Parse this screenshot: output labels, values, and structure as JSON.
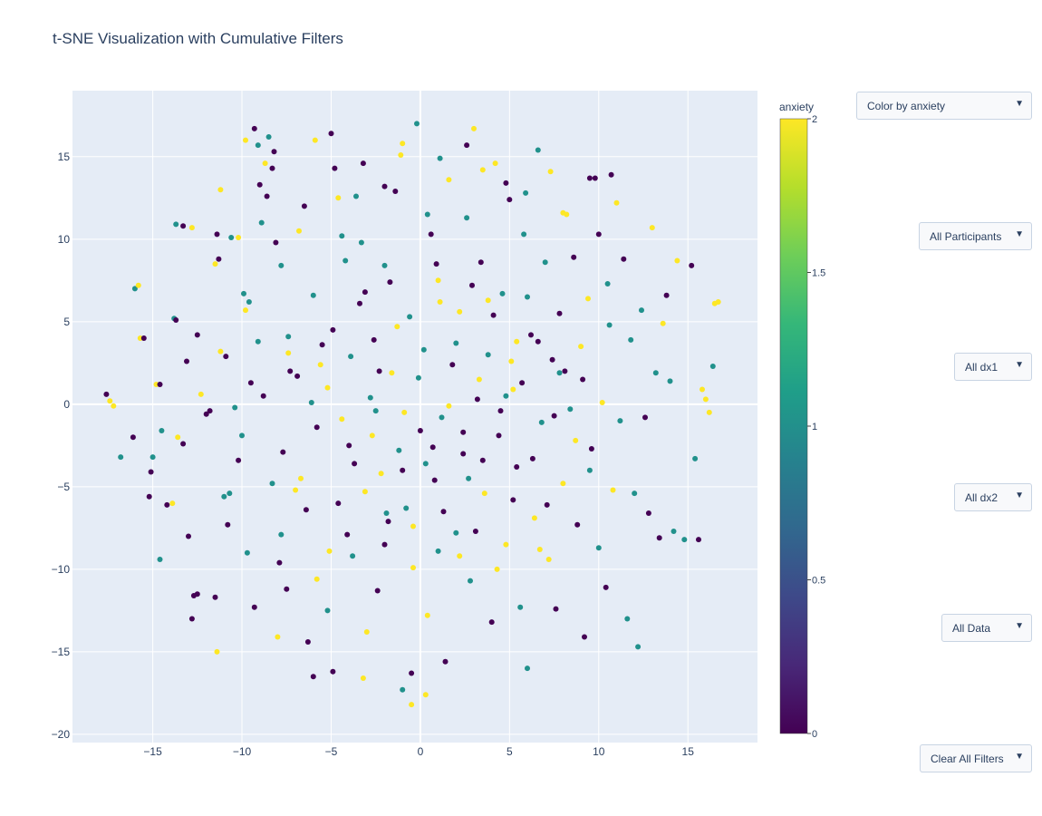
{
  "title": "t-SNE Visualization with Cumulative Filters",
  "controls": {
    "color_by": "Color by anxiety",
    "participants": "All Participants",
    "dx1": "All dx1",
    "dx2": "All dx2",
    "data": "All Data",
    "clear": "Clear All Filters",
    "arrow_icon": "triangle-down-icon"
  },
  "chart_data": {
    "type": "scatter",
    "title": "t-SNE Visualization with Cumulative Filters",
    "xlabel": "",
    "ylabel": "",
    "xlim": [
      -19.5,
      18.9
    ],
    "ylim": [
      -20.5,
      19.0
    ],
    "x_ticks": [
      -15,
      -10,
      -5,
      0,
      5,
      10,
      15
    ],
    "y_ticks": [
      -20,
      -15,
      -10,
      -5,
      0,
      5,
      10,
      15
    ],
    "grid": true,
    "colorbar": {
      "title": "anxiety",
      "range": [
        0,
        2
      ],
      "ticks": [
        0,
        0.5,
        1,
        1.5,
        2
      ],
      "tick_labels": [
        "0",
        "0.5",
        "1",
        "1.5",
        "2"
      ],
      "colorscale": [
        "#440154",
        "#482878",
        "#3e4989",
        "#31688e",
        "#26828e",
        "#1f9e89",
        "#35b779",
        "#6ece58",
        "#b5de2b",
        "#fde725"
      ]
    },
    "marker_colors": {
      "0": "#440154",
      "1": "#21918c",
      "2": "#fde725"
    },
    "points": [
      [
        -17.6,
        0.6,
        0
      ],
      [
        -17.4,
        0.2,
        2
      ],
      [
        -17.2,
        -0.1,
        2
      ],
      [
        -16.8,
        -3.2,
        1
      ],
      [
        -16.1,
        -2.0,
        0
      ],
      [
        -16.0,
        7.0,
        1
      ],
      [
        -15.8,
        7.2,
        2
      ],
      [
        -15.7,
        4.0,
        2
      ],
      [
        -15.5,
        4.0,
        0
      ],
      [
        -15.2,
        -5.6,
        0
      ],
      [
        -15.1,
        -4.1,
        0
      ],
      [
        -15.0,
        -3.2,
        1
      ],
      [
        -14.8,
        1.2,
        2
      ],
      [
        -14.6,
        1.2,
        0
      ],
      [
        -14.6,
        -9.4,
        1
      ],
      [
        -14.5,
        -1.6,
        1
      ],
      [
        -14.2,
        -6.1,
        0
      ],
      [
        -13.9,
        -6.0,
        2
      ],
      [
        -13.8,
        5.2,
        1
      ],
      [
        -13.7,
        5.1,
        0
      ],
      [
        -13.7,
        10.9,
        1
      ],
      [
        -13.6,
        -2.0,
        2
      ],
      [
        -13.3,
        10.8,
        0
      ],
      [
        -13.3,
        -2.4,
        0
      ],
      [
        -13.1,
        2.6,
        0
      ],
      [
        -13.0,
        -8.0,
        0
      ],
      [
        -12.8,
        10.7,
        2
      ],
      [
        -12.7,
        -11.6,
        0
      ],
      [
        -12.5,
        -11.5,
        0
      ],
      [
        -12.5,
        4.2,
        0
      ],
      [
        -12.3,
        0.6,
        2
      ],
      [
        -12.0,
        -0.6,
        0
      ],
      [
        -11.8,
        -0.4,
        0
      ],
      [
        -11.5,
        8.5,
        2
      ],
      [
        -11.4,
        10.3,
        0
      ],
      [
        -11.3,
        8.8,
        0
      ],
      [
        -11.2,
        3.2,
        2
      ],
      [
        -11.0,
        -5.6,
        1
      ],
      [
        -10.9,
        2.9,
        0
      ],
      [
        -10.8,
        -7.3,
        0
      ],
      [
        -10.7,
        -5.4,
        1
      ],
      [
        -10.6,
        10.1,
        1
      ],
      [
        -10.4,
        -0.2,
        1
      ],
      [
        -10.2,
        10.1,
        2
      ],
      [
        -10.2,
        -3.4,
        0
      ],
      [
        -10.0,
        -1.9,
        1
      ],
      [
        -9.9,
        6.7,
        1
      ],
      [
        -9.8,
        5.7,
        2
      ],
      [
        -9.6,
        6.2,
        1
      ],
      [
        -9.5,
        1.3,
        0
      ],
      [
        -9.3,
        16.7,
        0
      ],
      [
        -9.1,
        15.7,
        1
      ],
      [
        -9.0,
        13.3,
        0
      ],
      [
        -8.9,
        11.0,
        1
      ],
      [
        -8.7,
        14.6,
        2
      ],
      [
        -8.5,
        16.2,
        1
      ],
      [
        -8.3,
        14.3,
        0
      ],
      [
        -8.2,
        15.3,
        0
      ],
      [
        -8.1,
        9.8,
        0
      ],
      [
        -7.9,
        -9.6,
        0
      ],
      [
        -7.8,
        -7.9,
        1
      ],
      [
        -7.5,
        -11.2,
        0
      ],
      [
        -7.4,
        4.1,
        1
      ],
      [
        -7.3,
        2.0,
        0
      ],
      [
        -7.0,
        -5.2,
        2
      ],
      [
        -6.8,
        10.5,
        2
      ],
      [
        -6.5,
        12.0,
        0
      ],
      [
        -6.3,
        -14.4,
        0
      ],
      [
        -6.0,
        6.6,
        1
      ],
      [
        -5.8,
        -10.6,
        2
      ],
      [
        -5.5,
        3.6,
        0
      ],
      [
        -5.2,
        1.0,
        2
      ],
      [
        -5.0,
        16.4,
        0
      ],
      [
        -4.8,
        14.3,
        0
      ],
      [
        -4.6,
        -6.0,
        0
      ],
      [
        -4.4,
        10.2,
        1
      ],
      [
        -4.2,
        8.7,
        1
      ],
      [
        -4.0,
        -2.5,
        0
      ],
      [
        -3.8,
        -9.2,
        1
      ],
      [
        -3.6,
        12.6,
        1
      ],
      [
        -3.4,
        6.1,
        0
      ],
      [
        -3.2,
        -16.6,
        2
      ],
      [
        -3.0,
        -13.8,
        2
      ],
      [
        -2.8,
        0.4,
        1
      ],
      [
        -2.6,
        3.9,
        0
      ],
      [
        -2.4,
        -11.3,
        0
      ],
      [
        -2.2,
        -4.2,
        2
      ],
      [
        -2.0,
        8.4,
        1
      ],
      [
        -1.8,
        -7.1,
        0
      ],
      [
        -1.6,
        1.9,
        2
      ],
      [
        -1.4,
        12.9,
        0
      ],
      [
        -1.2,
        -2.8,
        1
      ],
      [
        -1.0,
        15.8,
        2
      ],
      [
        -0.8,
        -6.3,
        1
      ],
      [
        -0.6,
        5.3,
        1
      ],
      [
        -0.4,
        -9.9,
        2
      ],
      [
        -0.2,
        17.0,
        1
      ],
      [
        0.0,
        -1.6,
        0
      ],
      [
        0.2,
        3.3,
        1
      ],
      [
        0.4,
        -12.8,
        2
      ],
      [
        0.6,
        10.3,
        0
      ],
      [
        0.8,
        -4.6,
        0
      ],
      [
        1.0,
        7.5,
        2
      ],
      [
        1.2,
        -0.8,
        1
      ],
      [
        1.4,
        -15.6,
        0
      ],
      [
        1.6,
        13.6,
        2
      ],
      [
        1.8,
        2.4,
        0
      ],
      [
        2.0,
        -7.8,
        1
      ],
      [
        2.2,
        5.6,
        2
      ],
      [
        2.4,
        -3.0,
        0
      ],
      [
        2.6,
        11.3,
        1
      ],
      [
        2.8,
        -10.7,
        1
      ],
      [
        3.0,
        16.7,
        2
      ],
      [
        3.2,
        0.3,
        0
      ],
      [
        3.4,
        8.6,
        0
      ],
      [
        3.6,
        -5.4,
        2
      ],
      [
        3.8,
        3.0,
        1
      ],
      [
        4.0,
        -13.2,
        0
      ],
      [
        4.2,
        14.6,
        2
      ],
      [
        4.4,
        -1.9,
        0
      ],
      [
        4.6,
        6.7,
        1
      ],
      [
        4.8,
        -8.5,
        2
      ],
      [
        5.0,
        12.4,
        0
      ],
      [
        5.2,
        0.9,
        2
      ],
      [
        5.4,
        -3.8,
        0
      ],
      [
        5.6,
        -12.3,
        1
      ],
      [
        5.8,
        10.3,
        1
      ],
      [
        6.0,
        -16.0,
        1
      ],
      [
        6.2,
        4.2,
        0
      ],
      [
        6.4,
        -6.9,
        2
      ],
      [
        6.6,
        15.4,
        1
      ],
      [
        6.8,
        -1.1,
        1
      ],
      [
        7.0,
        8.6,
        1
      ],
      [
        7.2,
        -9.4,
        2
      ],
      [
        7.4,
        2.7,
        0
      ],
      [
        7.6,
        -12.4,
        0
      ],
      [
        7.8,
        5.5,
        0
      ],
      [
        8.0,
        -4.8,
        2
      ],
      [
        8.2,
        11.5,
        2
      ],
      [
        8.4,
        -0.3,
        1
      ],
      [
        8.6,
        8.9,
        0
      ],
      [
        8.8,
        -7.3,
        0
      ],
      [
        9.0,
        3.5,
        2
      ],
      [
        9.2,
        -14.1,
        0
      ],
      [
        9.4,
        6.4,
        2
      ],
      [
        9.6,
        -2.7,
        0
      ],
      [
        9.8,
        13.7,
        0
      ],
      [
        10.0,
        -8.7,
        1
      ],
      [
        10.2,
        0.1,
        2
      ],
      [
        10.4,
        -11.1,
        0
      ],
      [
        10.6,
        4.8,
        1
      ],
      [
        10.8,
        -5.2,
        2
      ],
      [
        11.0,
        12.2,
        2
      ],
      [
        11.2,
        -1.0,
        1
      ],
      [
        11.4,
        8.8,
        0
      ],
      [
        11.6,
        -13.0,
        1
      ],
      [
        11.8,
        3.9,
        1
      ],
      [
        12.0,
        -5.4,
        1
      ],
      [
        12.2,
        -14.7,
        1
      ],
      [
        12.4,
        5.7,
        1
      ],
      [
        12.6,
        -0.8,
        0
      ],
      [
        12.8,
        -6.6,
        0
      ],
      [
        13.0,
        10.7,
        2
      ],
      [
        13.2,
        1.9,
        1
      ],
      [
        13.4,
        -8.1,
        0
      ],
      [
        13.6,
        4.9,
        2
      ],
      [
        13.8,
        6.6,
        0
      ],
      [
        14.0,
        1.4,
        1
      ],
      [
        14.2,
        -7.7,
        1
      ],
      [
        14.4,
        8.7,
        2
      ],
      [
        14.8,
        -8.2,
        1
      ],
      [
        15.2,
        8.4,
        0
      ],
      [
        15.4,
        -3.3,
        1
      ],
      [
        15.6,
        -8.2,
        0
      ],
      [
        15.8,
        0.9,
        2
      ],
      [
        16.0,
        0.3,
        2
      ],
      [
        16.2,
        -0.5,
        2
      ],
      [
        16.4,
        2.3,
        1
      ],
      [
        16.5,
        6.1,
        2
      ],
      [
        16.7,
        6.2,
        2
      ],
      [
        -3.7,
        -3.6,
        0
      ],
      [
        -2.3,
        2.0,
        0
      ],
      [
        -1.0,
        -4.0,
        0
      ],
      [
        0.7,
        -2.6,
        0
      ],
      [
        2.4,
        -1.7,
        0
      ],
      [
        3.5,
        -3.4,
        0
      ],
      [
        4.5,
        -0.4,
        0
      ],
      [
        5.7,
        1.3,
        0
      ],
      [
        6.3,
        -3.3,
        0
      ],
      [
        7.5,
        -0.7,
        0
      ],
      [
        -5.8,
        -1.4,
        0
      ],
      [
        -6.9,
        1.7,
        0
      ],
      [
        -7.7,
        -2.9,
        0
      ],
      [
        -8.8,
        0.5,
        0
      ],
      [
        -4.9,
        4.5,
        0
      ],
      [
        -3.1,
        6.8,
        0
      ],
      [
        -1.7,
        7.4,
        0
      ],
      [
        0.9,
        8.5,
        0
      ],
      [
        2.9,
        7.2,
        0
      ],
      [
        4.1,
        5.4,
        0
      ],
      [
        6.6,
        3.8,
        0
      ],
      [
        8.1,
        2.0,
        0
      ],
      [
        9.1,
        1.5,
        0
      ],
      [
        -6.4,
        -6.4,
        0
      ],
      [
        -4.1,
        -7.9,
        0
      ],
      [
        -2.0,
        -8.5,
        0
      ],
      [
        1.3,
        -6.5,
        0
      ],
      [
        3.1,
        -7.7,
        0
      ],
      [
        5.2,
        -5.8,
        0
      ],
      [
        7.1,
        -6.1,
        0
      ],
      [
        -4.4,
        -0.9,
        2
      ],
      [
        -2.7,
        -1.9,
        2
      ],
      [
        -0.9,
        -0.5,
        2
      ],
      [
        1.6,
        -0.1,
        2
      ],
      [
        3.3,
        1.5,
        2
      ],
      [
        5.1,
        2.6,
        2
      ],
      [
        -5.6,
        2.4,
        2
      ],
      [
        -7.4,
        3.1,
        2
      ],
      [
        -1.3,
        4.7,
        2
      ],
      [
        1.1,
        6.2,
        2
      ],
      [
        3.8,
        6.3,
        2
      ],
      [
        5.4,
        3.8,
        2
      ],
      [
        -3.1,
        -5.3,
        2
      ],
      [
        -0.4,
        -7.4,
        2
      ],
      [
        2.2,
        -9.2,
        2
      ],
      [
        4.3,
        -10.0,
        2
      ],
      [
        -5.1,
        -8.9,
        2
      ],
      [
        -6.7,
        -4.5,
        2
      ],
      [
        6.7,
        -8.8,
        2
      ],
      [
        8.7,
        -2.2,
        2
      ],
      [
        -2.5,
        -0.4,
        1
      ],
      [
        -0.1,
        1.6,
        1
      ],
      [
        2.0,
        3.7,
        1
      ],
      [
        -3.9,
        2.9,
        1
      ],
      [
        -6.1,
        0.1,
        1
      ],
      [
        0.3,
        -3.6,
        1
      ],
      [
        2.7,
        -4.5,
        1
      ],
      [
        4.8,
        0.5,
        1
      ],
      [
        -1.9,
        -6.6,
        1
      ],
      [
        1.0,
        -8.9,
        1
      ],
      [
        -8.3,
        -4.8,
        1
      ],
      [
        -9.1,
        3.8,
        1
      ],
      [
        6.0,
        6.5,
        1
      ],
      [
        7.8,
        1.9,
        1
      ],
      [
        -3.3,
        9.8,
        1
      ],
      [
        0.4,
        11.5,
        1
      ],
      [
        -9.7,
        -9.0,
        1
      ],
      [
        -7.8,
        8.4,
        1
      ],
      [
        9.5,
        -4.0,
        1
      ],
      [
        10.5,
        7.3,
        1
      ],
      [
        -11.4,
        -15.0,
        2
      ],
      [
        -11.5,
        -11.7,
        0
      ],
      [
        -8.0,
        -14.1,
        2
      ],
      [
        -6.0,
        -16.5,
        0
      ],
      [
        -4.9,
        -16.2,
        0
      ],
      [
        -1.0,
        -17.3,
        1
      ],
      [
        -0.5,
        -18.2,
        2
      ],
      [
        0.3,
        -17.6,
        2
      ],
      [
        -0.5,
        -16.3,
        0
      ],
      [
        -5.2,
        -12.5,
        1
      ],
      [
        -9.3,
        -12.3,
        0
      ],
      [
        -12.8,
        -13.0,
        0
      ],
      [
        -2.0,
        13.2,
        0
      ],
      [
        -3.2,
        14.6,
        0
      ],
      [
        -1.1,
        15.1,
        2
      ],
      [
        -11.2,
        13.0,
        2
      ],
      [
        -9.8,
        16.0,
        2
      ],
      [
        -8.6,
        12.6,
        0
      ],
      [
        -5.9,
        16.0,
        2
      ],
      [
        -4.6,
        12.5,
        2
      ],
      [
        1.1,
        14.9,
        1
      ],
      [
        2.6,
        15.7,
        0
      ],
      [
        3.5,
        14.2,
        2
      ],
      [
        4.8,
        13.4,
        0
      ],
      [
        5.9,
        12.8,
        1
      ],
      [
        7.3,
        14.1,
        2
      ],
      [
        9.5,
        13.7,
        0
      ],
      [
        10.7,
        13.9,
        0
      ],
      [
        8.0,
        11.6,
        2
      ],
      [
        10.0,
        10.3,
        0
      ]
    ]
  }
}
